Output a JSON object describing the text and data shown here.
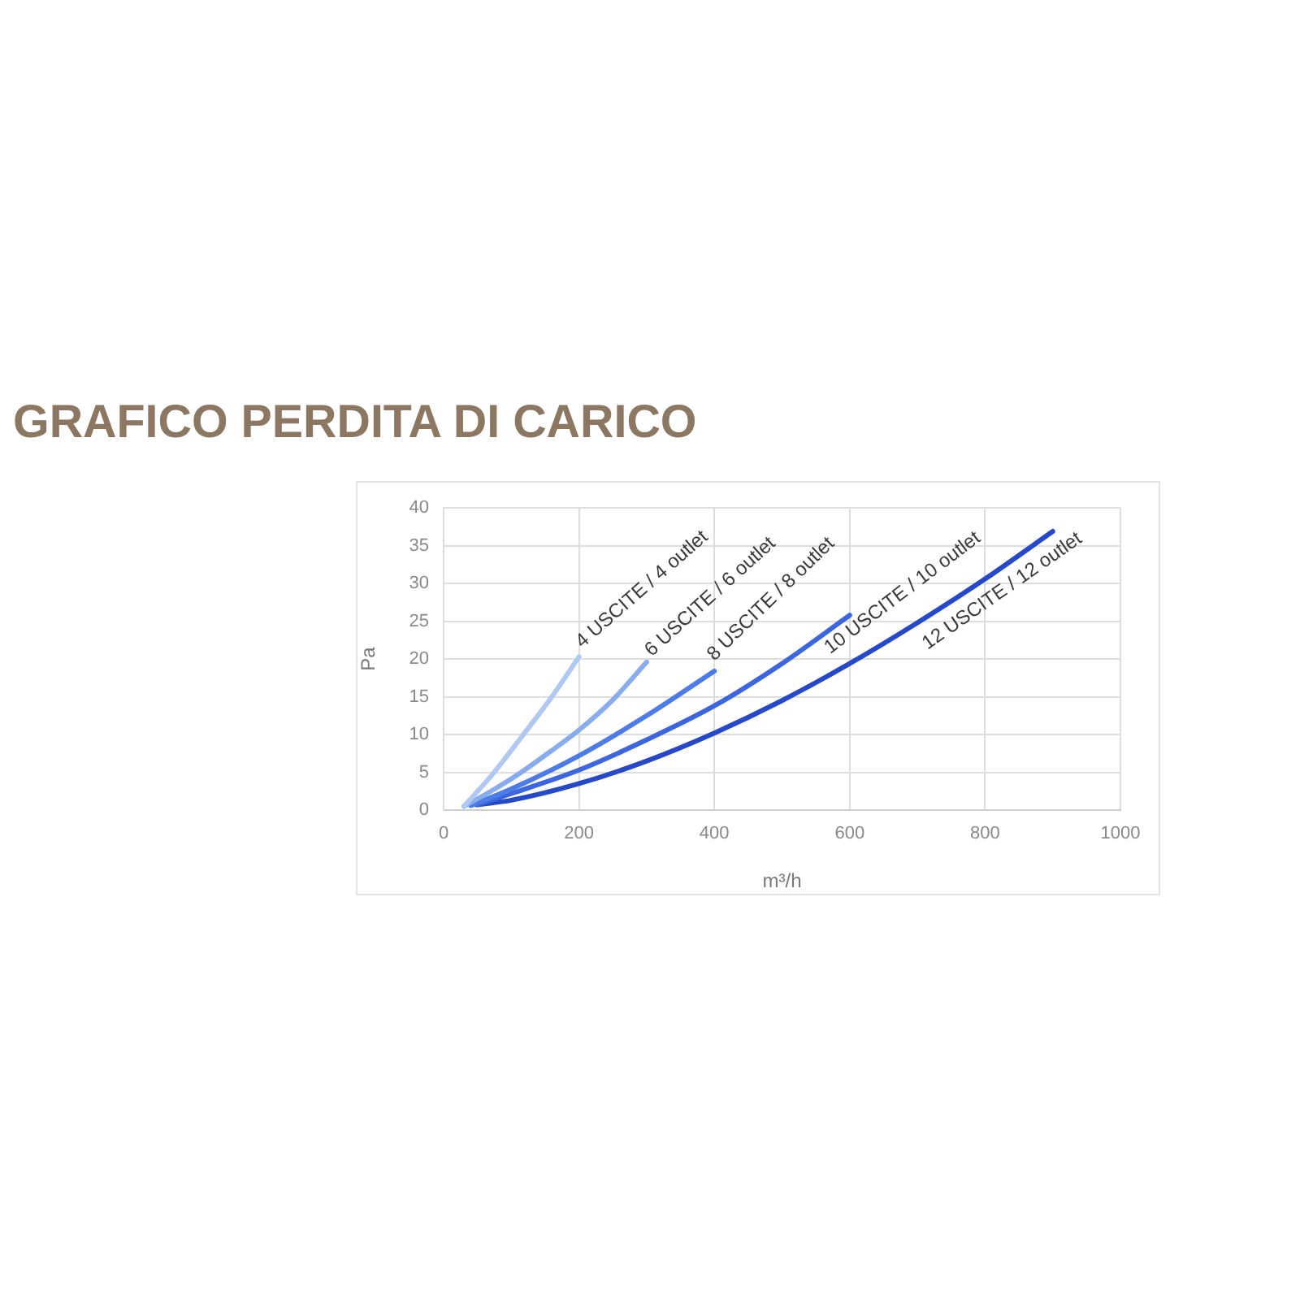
{
  "chart_data": {
    "type": "line",
    "title": "GRAFICO PERDITA DI CARICO",
    "xlabel": "m³/h",
    "ylabel": "Pa",
    "xlim": [
      0,
      1000
    ],
    "xticks": [
      0,
      200,
      400,
      600,
      800,
      1000
    ],
    "ylim": [
      0,
      40
    ],
    "yticks": [
      0,
      5,
      10,
      15,
      20,
      25,
      30,
      35,
      40
    ],
    "grid": true,
    "legend": false,
    "marker": "none",
    "line_style": "solid",
    "series": [
      {
        "name": "4 USCITE / 4 outlet",
        "color": "#b0c8f2",
        "x": [
          30,
          70,
          117,
          160,
          200
        ],
        "values": [
          0.5,
          4.5,
          9.9,
          15.0,
          20.3
        ]
      },
      {
        "name": "6 USCITE / 6 outlet",
        "color": "#88acee",
        "x": [
          30,
          70,
          113,
          160,
          200,
          250,
          300
        ],
        "values": [
          0.5,
          2.5,
          4.9,
          7.9,
          10.6,
          14.6,
          19.6
        ]
      },
      {
        "name": "8 USCITE / 8 outlet",
        "color": "#4d7ce8",
        "x": [
          40,
          100,
          200,
          300,
          400
        ],
        "values": [
          0.6,
          2.8,
          7.2,
          12.5,
          18.4
        ]
      },
      {
        "name": "10 USCITE / 10 outlet",
        "color": "#3b66e0",
        "x": [
          48,
          100,
          200,
          300,
          400,
          500,
          600
        ],
        "values": [
          0.7,
          2.2,
          5.3,
          9.3,
          13.8,
          19.4,
          25.8
        ]
      },
      {
        "name": "12 USCITE / 12 outlet",
        "color": "#2549c8",
        "x": [
          50,
          100,
          200,
          300,
          400,
          500,
          600,
          700,
          800,
          900
        ],
        "values": [
          0.7,
          1.3,
          3.5,
          6.5,
          10.2,
          14.5,
          19.4,
          24.8,
          30.6,
          36.9
        ]
      }
    ]
  }
}
